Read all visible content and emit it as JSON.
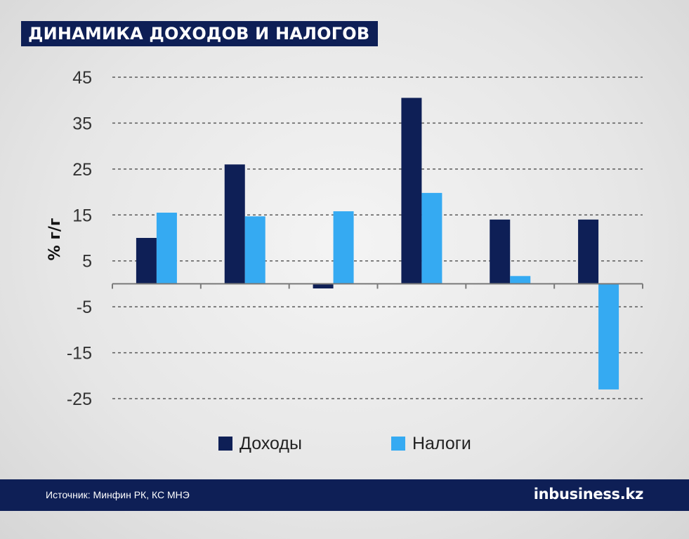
{
  "title": "ДИНАМИКА ДОХОДОВ И НАЛОГОВ",
  "footer": {
    "source": "Источник: Минфин РК, КС МНЭ",
    "brand": "inbusiness.kz"
  },
  "colors": {
    "dohody": "#0e1f56",
    "nalogi": "#35aaf2",
    "footer_bg": "#0e1f56"
  },
  "chart_data": {
    "type": "bar",
    "ylabel": "% г/г",
    "ylim": [
      -25,
      45
    ],
    "yticks": [
      45,
      35,
      25,
      15,
      5,
      -5,
      -15,
      -25
    ],
    "grid": true,
    "legend_position": "bottom",
    "categories": [
      "",
      "",
      "",
      "",
      "",
      ""
    ],
    "series": [
      {
        "name": "Доходы",
        "color": "#0e1f56",
        "values": [
          10,
          26,
          -1,
          40.5,
          14,
          14
        ]
      },
      {
        "name": "Налоги",
        "color": "#35aaf2",
        "values": [
          15.5,
          14.7,
          15.8,
          19.8,
          1.7,
          -23
        ]
      }
    ]
  }
}
